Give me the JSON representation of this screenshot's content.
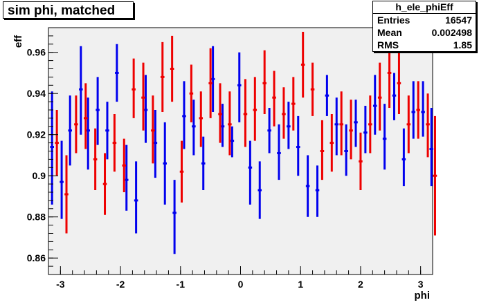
{
  "title": "sim phi, matched",
  "stats": {
    "name": "h_ele_phiEff",
    "rows": [
      {
        "label": "Entries",
        "value": "16547"
      },
      {
        "label": "Mean",
        "value": "0.002498"
      },
      {
        "label": "RMS",
        "value": "1.85"
      }
    ]
  },
  "colors": {
    "frame_bg": "#f0f0f0",
    "series_a": "#0000ee",
    "series_b": "#ee0000"
  },
  "chart_data": {
    "type": "scatter",
    "xlabel": "phi",
    "ylabel": "eff",
    "xlim": [
      -3.2,
      3.2
    ],
    "ylim": [
      0.852,
      0.972
    ],
    "xticks": [
      -3,
      -2,
      -1,
      0,
      1,
      2,
      3
    ],
    "yticks": [
      0.86,
      0.88,
      0.9,
      0.92,
      0.94,
      0.96
    ],
    "xtick_labels": [
      "-3",
      "-2",
      "-1",
      "0",
      "1",
      "2",
      "3"
    ],
    "ytick_labels": [
      "0.86",
      "0.88",
      "0.9",
      "0.92",
      "0.94",
      "0.96"
    ],
    "bin_halfwidth": 0.032,
    "series": [
      {
        "color": "#0000ee",
        "points": [
          {
            "x": -3.14,
            "y": 0.914,
            "lo": 0.886,
            "hi": 0.941
          },
          {
            "x": -2.98,
            "y": 0.897,
            "lo": 0.879,
            "hi": 0.917
          },
          {
            "x": -2.84,
            "y": 0.922,
            "lo": 0.905,
            "hi": 0.939
          },
          {
            "x": -2.66,
            "y": 0.942,
            "lo": 0.92,
            "hi": 0.963
          },
          {
            "x": -2.54,
            "y": 0.922,
            "lo": 0.903,
            "hi": 0.938
          },
          {
            "x": -2.38,
            "y": 0.932,
            "lo": 0.915,
            "hi": 0.948
          },
          {
            "x": -2.22,
            "y": 0.922,
            "lo": 0.908,
            "hi": 0.936
          },
          {
            "x": -2.06,
            "y": 0.95,
            "lo": 0.936,
            "hi": 0.964
          },
          {
            "x": -1.9,
            "y": 0.898,
            "lo": 0.883,
            "hi": 0.915
          },
          {
            "x": -1.74,
            "y": 0.888,
            "lo": 0.872,
            "hi": 0.907
          },
          {
            "x": -1.58,
            "y": 0.932,
            "lo": 0.916,
            "hi": 0.949
          },
          {
            "x": -1.42,
            "y": 0.916,
            "lo": 0.899,
            "hi": 0.932
          },
          {
            "x": -1.26,
            "y": 0.906,
            "lo": 0.886,
            "hi": 0.926
          },
          {
            "x": -1.1,
            "y": 0.882,
            "lo": 0.862,
            "hi": 0.898
          },
          {
            "x": -0.94,
            "y": 0.929,
            "lo": 0.913,
            "hi": 0.946
          },
          {
            "x": -0.78,
            "y": 0.924,
            "lo": 0.91,
            "hi": 0.937
          },
          {
            "x": -0.62,
            "y": 0.906,
            "lo": 0.893,
            "hi": 0.919
          },
          {
            "x": -0.46,
            "y": 0.947,
            "lo": 0.931,
            "hi": 0.963
          },
          {
            "x": -0.3,
            "y": 0.924,
            "lo": 0.914,
            "hi": 0.935
          },
          {
            "x": -0.14,
            "y": 0.917,
            "lo": 0.909,
            "hi": 0.924
          },
          {
            "x": -0.02,
            "y": 0.944,
            "lo": 0.926,
            "hi": 0.96
          },
          {
            "x": 0.16,
            "y": 0.904,
            "lo": 0.886,
            "hi": 0.917
          },
          {
            "x": 0.32,
            "y": 0.893,
            "lo": 0.879,
            "hi": 0.907
          },
          {
            "x": 0.48,
            "y": 0.922,
            "lo": 0.911,
            "hi": 0.933
          },
          {
            "x": 0.64,
            "y": 0.911,
            "lo": 0.898,
            "hi": 0.925
          },
          {
            "x": 0.8,
            "y": 0.924,
            "lo": 0.913,
            "hi": 0.936
          },
          {
            "x": 0.96,
            "y": 0.914,
            "lo": 0.9,
            "hi": 0.929
          },
          {
            "x": 1.12,
            "y": 0.895,
            "lo": 0.88,
            "hi": 0.91
          },
          {
            "x": 1.28,
            "y": 0.893,
            "lo": 0.88,
            "hi": 0.905
          },
          {
            "x": 1.44,
            "y": 0.939,
            "lo": 0.929,
            "hi": 0.949
          },
          {
            "x": 1.6,
            "y": 0.925,
            "lo": 0.91,
            "hi": 0.938
          },
          {
            "x": 1.76,
            "y": 0.912,
            "lo": 0.9,
            "hi": 0.925
          },
          {
            "x": 1.92,
            "y": 0.926,
            "lo": 0.914,
            "hi": 0.937
          },
          {
            "x": 2.08,
            "y": 0.921,
            "lo": 0.911,
            "hi": 0.934
          },
          {
            "x": 2.24,
            "y": 0.934,
            "lo": 0.92,
            "hi": 0.949
          },
          {
            "x": 2.4,
            "y": 0.918,
            "lo": 0.903,
            "hi": 0.935
          },
          {
            "x": 2.56,
            "y": 0.939,
            "lo": 0.927,
            "hi": 0.95
          },
          {
            "x": 2.72,
            "y": 0.908,
            "lo": 0.895,
            "hi": 0.923
          },
          {
            "x": 2.88,
            "y": 0.931,
            "lo": 0.918,
            "hi": 0.946
          },
          {
            "x": 3.04,
            "y": 0.931,
            "lo": 0.919,
            "hi": 0.946
          },
          {
            "x": 3.18,
            "y": 0.913,
            "lo": 0.895,
            "hi": 0.933
          }
        ]
      },
      {
        "color": "#ee0000",
        "points": [
          {
            "x": -3.06,
            "y": 0.916,
            "lo": 0.9,
            "hi": 0.932
          },
          {
            "x": -2.9,
            "y": 0.891,
            "lo": 0.872,
            "hi": 0.91
          },
          {
            "x": -2.74,
            "y": 0.925,
            "lo": 0.911,
            "hi": 0.939
          },
          {
            "x": -2.58,
            "y": 0.928,
            "lo": 0.913,
            "hi": 0.945
          },
          {
            "x": -2.42,
            "y": 0.908,
            "lo": 0.893,
            "hi": 0.923
          },
          {
            "x": -2.26,
            "y": 0.896,
            "lo": 0.881,
            "hi": 0.911
          },
          {
            "x": -2.1,
            "y": 0.916,
            "lo": 0.902,
            "hi": 0.93
          },
          {
            "x": -1.94,
            "y": 0.905,
            "lo": 0.892,
            "hi": 0.918
          },
          {
            "x": -1.78,
            "y": 0.942,
            "lo": 0.928,
            "hi": 0.957
          },
          {
            "x": -1.62,
            "y": 0.938,
            "lo": 0.922,
            "hi": 0.955
          },
          {
            "x": -1.46,
            "y": 0.922,
            "lo": 0.906,
            "hi": 0.939
          },
          {
            "x": -1.3,
            "y": 0.948,
            "lo": 0.931,
            "hi": 0.965
          },
          {
            "x": -1.14,
            "y": 0.952,
            "lo": 0.936,
            "hi": 0.968
          },
          {
            "x": -0.98,
            "y": 0.902,
            "lo": 0.887,
            "hi": 0.917
          },
          {
            "x": -0.82,
            "y": 0.94,
            "lo": 0.926,
            "hi": 0.954
          },
          {
            "x": -0.66,
            "y": 0.928,
            "lo": 0.914,
            "hi": 0.941
          },
          {
            "x": -0.5,
            "y": 0.945,
            "lo": 0.928,
            "hi": 0.962
          },
          {
            "x": -0.34,
            "y": 0.93,
            "lo": 0.916,
            "hi": 0.945
          },
          {
            "x": -0.18,
            "y": 0.925,
            "lo": 0.91,
            "hi": 0.941
          },
          {
            "x": 0.08,
            "y": 0.93,
            "lo": 0.914,
            "hi": 0.947
          },
          {
            "x": 0.24,
            "y": 0.932,
            "lo": 0.917,
            "hi": 0.948
          },
          {
            "x": 0.4,
            "y": 0.945,
            "lo": 0.93,
            "hi": 0.961
          },
          {
            "x": 0.56,
            "y": 0.938,
            "lo": 0.924,
            "hi": 0.951
          },
          {
            "x": 0.72,
            "y": 0.93,
            "lo": 0.918,
            "hi": 0.943
          },
          {
            "x": 0.88,
            "y": 0.935,
            "lo": 0.922,
            "hi": 0.948
          },
          {
            "x": 1.04,
            "y": 0.954,
            "lo": 0.938,
            "hi": 0.97
          },
          {
            "x": 1.2,
            "y": 0.942,
            "lo": 0.929,
            "hi": 0.955
          },
          {
            "x": 1.36,
            "y": 0.912,
            "lo": 0.898,
            "hi": 0.927
          },
          {
            "x": 1.52,
            "y": 0.916,
            "lo": 0.902,
            "hi": 0.93
          },
          {
            "x": 1.68,
            "y": 0.925,
            "lo": 0.91,
            "hi": 0.941
          },
          {
            "x": 1.84,
            "y": 0.922,
            "lo": 0.908,
            "hi": 0.937
          },
          {
            "x": 2.0,
            "y": 0.907,
            "lo": 0.893,
            "hi": 0.921
          },
          {
            "x": 2.16,
            "y": 0.925,
            "lo": 0.911,
            "hi": 0.939
          },
          {
            "x": 2.32,
            "y": 0.938,
            "lo": 0.922,
            "hi": 0.955
          },
          {
            "x": 2.48,
            "y": 0.95,
            "lo": 0.933,
            "hi": 0.967
          },
          {
            "x": 2.64,
            "y": 0.945,
            "lo": 0.93,
            "hi": 0.96
          },
          {
            "x": 2.8,
            "y": 0.925,
            "lo": 0.911,
            "hi": 0.939
          },
          {
            "x": 2.96,
            "y": 0.932,
            "lo": 0.918,
            "hi": 0.946
          },
          {
            "x": 3.12,
            "y": 0.925,
            "lo": 0.909,
            "hi": 0.94
          },
          {
            "x": 3.24,
            "y": 0.9,
            "lo": 0.871,
            "hi": 0.929
          }
        ]
      }
    ]
  }
}
